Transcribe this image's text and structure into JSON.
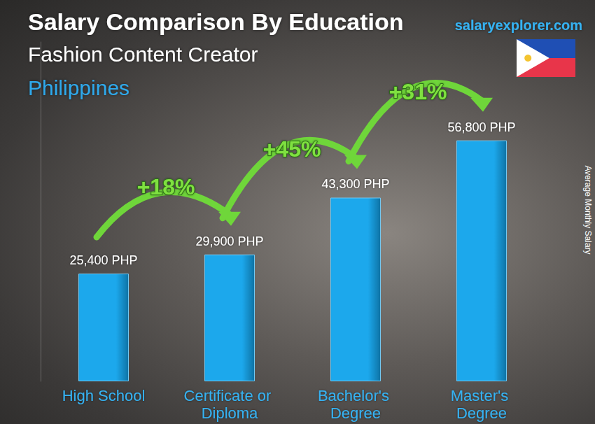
{
  "chart_data": {
    "type": "bar",
    "title": "Salary Comparison By Education",
    "subtitle": "Fashion Content Creator",
    "location": "Philippines",
    "source": "salaryexplorer.com",
    "y_label": "Average Monthly Salary",
    "categories": [
      "High School",
      "Certificate or Diploma",
      "Bachelor's Degree",
      "Master's Degree"
    ],
    "values": [
      25400,
      29900,
      43300,
      56800
    ],
    "value_labels": [
      "25,400 PHP",
      "29,900 PHP",
      "43,300 PHP",
      "56,800 PHP"
    ],
    "annotations": [
      "+18%",
      "+45%",
      "+31%"
    ],
    "color": "#1ca8ec",
    "ylim": [
      0,
      80000
    ],
    "grid": false,
    "tick_labels": "x",
    "data_labels": true
  }
}
